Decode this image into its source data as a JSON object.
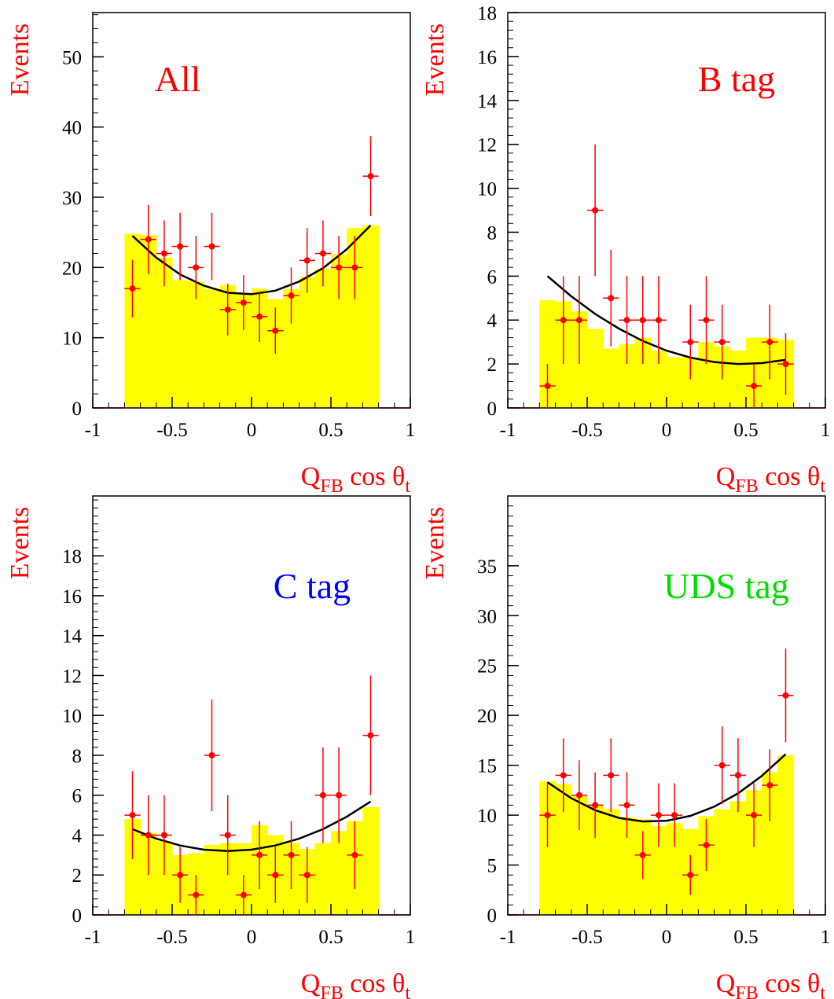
{
  "chart_data": [
    {
      "type": "histogram",
      "title": "All",
      "title_color": "#ff0000",
      "ylabel": "Events",
      "xlabel": [
        "Q",
        "FB",
        " cos θ",
        "t"
      ],
      "bins": [
        -0.8,
        -0.7,
        -0.6,
        -0.5,
        -0.4,
        -0.3,
        -0.2,
        -0.1,
        0,
        0.1,
        0.2,
        0.3,
        0.4,
        0.5,
        0.6,
        0.7,
        0.8
      ],
      "counts": [
        24.8,
        24.6,
        21.4,
        18.2,
        18,
        16.9,
        17.5,
        16.4,
        17,
        15.5,
        16.9,
        18.7,
        19.8,
        21.9,
        25.6,
        26
      ],
      "color": "#ffff00",
      "xlim": [
        -1,
        1
      ],
      "xticks": [
        -1,
        -0.5,
        0,
        0.5,
        1
      ],
      "ylim": [
        0,
        56.3
      ],
      "yticks": [
        0,
        10,
        20,
        30,
        40,
        50
      ],
      "xerr": 0.05,
      "points": {
        "color": "#ff0000",
        "x": [
          -0.75,
          -0.65,
          -0.55,
          -0.45,
          -0.35,
          -0.25,
          -0.15,
          -0.05,
          0.05,
          0.15,
          0.25,
          0.35,
          0.45,
          0.55,
          0.65,
          0.75
        ],
        "values": [
          17,
          24,
          22,
          23,
          20,
          23,
          14,
          15,
          13,
          11,
          16,
          21,
          22,
          20,
          20,
          33
        ],
        "errors": [
          4.1,
          4.9,
          4.7,
          4.8,
          4.5,
          4.8,
          3.7,
          3.9,
          3.6,
          3.3,
          4,
          4.6,
          4.7,
          4.5,
          4.5,
          5.7
        ]
      },
      "fit": {
        "color": "#000000",
        "x": [
          -0.75,
          -0.6,
          -0.45,
          -0.3,
          -0.15,
          0,
          0.15,
          0.3,
          0.45,
          0.6,
          0.75
        ],
        "values": [
          24.5,
          21.4,
          19,
          17.4,
          16.4,
          16.2,
          16.7,
          18,
          19.9,
          22.6,
          26
        ]
      }
    },
    {
      "type": "histogram",
      "title": "B tag",
      "title_color": "#ff0000",
      "ylabel": "Events",
      "xlabel": [
        "Q",
        "FB",
        " cos θ",
        "t"
      ],
      "bins": [
        -0.8,
        -0.7,
        -0.6,
        -0.5,
        -0.4,
        -0.3,
        -0.2,
        -0.1,
        0,
        0.1,
        0.2,
        0.3,
        0.4,
        0.5,
        0.6,
        0.7,
        0.8
      ],
      "counts": [
        4.9,
        4.85,
        4.4,
        3.6,
        2.7,
        2.9,
        3.2,
        2.6,
        2.3,
        2.3,
        3,
        2.8,
        2.6,
        3.2,
        3.2,
        3.1
      ],
      "color": "#ffff00",
      "xlim": [
        -1,
        1
      ],
      "xticks": [
        -1,
        -0.5,
        0,
        0.5,
        1
      ],
      "ylim": [
        0,
        18
      ],
      "yticks": [
        0,
        2,
        4,
        6,
        8,
        10,
        12,
        14,
        16,
        18
      ],
      "xerr": 0.05,
      "points": {
        "color": "#ff0000",
        "x": [
          -0.75,
          -0.65,
          -0.55,
          -0.45,
          -0.35,
          -0.25,
          -0.15,
          -0.05,
          0.15,
          0.25,
          0.35,
          0.55,
          0.65,
          0.75
        ],
        "values": [
          1,
          4,
          4,
          9,
          5,
          4,
          4,
          4,
          3,
          4,
          3,
          1,
          3,
          2
        ],
        "errors": [
          1,
          2,
          2,
          3,
          2.2,
          2,
          2,
          2,
          1.7,
          2,
          1.7,
          1,
          1.7,
          1.4
        ]
      },
      "fit": {
        "color": "#000000",
        "x": [
          -0.75,
          -0.6,
          -0.45,
          -0.3,
          -0.15,
          0,
          0.15,
          0.3,
          0.45,
          0.6,
          0.75
        ],
        "values": [
          6,
          5.08,
          4.28,
          3.61,
          3.05,
          2.61,
          2.29,
          2.09,
          2,
          2.04,
          2.19
        ]
      }
    },
    {
      "type": "histogram",
      "title": "C tag",
      "title_color": "#0000ff",
      "ylabel": "Events",
      "xlabel": [
        "Q",
        "FB",
        " cos θ",
        "t"
      ],
      "bins": [
        -0.8,
        -0.7,
        -0.6,
        -0.5,
        -0.4,
        -0.3,
        -0.2,
        -0.1,
        0,
        0.1,
        0.2,
        0.3,
        0.4,
        0.5,
        0.6,
        0.7,
        0.8
      ],
      "counts": [
        4.8,
        4.1,
        3.7,
        3,
        3.1,
        3.5,
        3.6,
        3.6,
        4.5,
        4,
        3.6,
        3.3,
        3.6,
        4.2,
        4.7,
        5.4
      ],
      "color": "#ffff00",
      "xlim": [
        -1,
        1
      ],
      "xticks": [
        -1,
        -0.5,
        0,
        0.5,
        1
      ],
      "ylim": [
        0,
        21
      ],
      "yticks": [
        0,
        2,
        4,
        6,
        8,
        10,
        12,
        14,
        16,
        18
      ],
      "xerr": 0.05,
      "points": {
        "color": "#ff0000",
        "x": [
          -0.75,
          -0.65,
          -0.55,
          -0.45,
          -0.35,
          -0.25,
          -0.15,
          -0.05,
          0.05,
          0.15,
          0.25,
          0.35,
          0.45,
          0.55,
          0.65,
          0.75
        ],
        "values": [
          5,
          4,
          4,
          2,
          1,
          8,
          4,
          1,
          3,
          2,
          3,
          2,
          6,
          6,
          3,
          9
        ],
        "errors": [
          2.2,
          2,
          2,
          1.4,
          1,
          2.8,
          2,
          1,
          1.7,
          1.4,
          1.7,
          1.4,
          2.4,
          2.4,
          1.7,
          3
        ]
      },
      "fit": {
        "color": "#000000",
        "x": [
          -0.75,
          -0.6,
          -0.45,
          -0.3,
          -0.15,
          0,
          0.15,
          0.3,
          0.45,
          0.6,
          0.75
        ],
        "values": [
          4.3,
          3.82,
          3.48,
          3.27,
          3.2,
          3.27,
          3.48,
          3.82,
          4.3,
          4.92,
          5.68
        ]
      }
    },
    {
      "type": "histogram",
      "title": "UDS tag",
      "title_color": "#00dd00",
      "ylabel": "Events",
      "xlabel": [
        "Q",
        "FB",
        " cos θ",
        "t"
      ],
      "bins": [
        -0.8,
        -0.7,
        -0.6,
        -0.5,
        -0.4,
        -0.3,
        -0.2,
        -0.1,
        0,
        0.1,
        0.2,
        0.3,
        0.4,
        0.5,
        0.6,
        0.7,
        0.8
      ],
      "counts": [
        13.4,
        13.1,
        11.9,
        11,
        10.6,
        9.8,
        9.6,
        8.9,
        9.2,
        8.6,
        9.9,
        10.6,
        11.4,
        12.5,
        14.3,
        16
      ],
      "color": "#ffff00",
      "xlim": [
        -1,
        1
      ],
      "xticks": [
        -1,
        -0.5,
        0,
        0.5,
        1
      ],
      "ylim": [
        0,
        42
      ],
      "yticks": [
        0,
        5,
        10,
        15,
        20,
        25,
        30,
        35
      ],
      "xerr": 0.05,
      "points": {
        "color": "#ff0000",
        "x": [
          -0.75,
          -0.65,
          -0.55,
          -0.45,
          -0.35,
          -0.25,
          -0.15,
          -0.05,
          0.05,
          0.15,
          0.25,
          0.35,
          0.45,
          0.55,
          0.65,
          0.75
        ],
        "values": [
          10,
          14,
          12,
          11,
          14,
          11,
          6,
          10,
          10,
          4,
          7,
          15,
          14,
          10,
          13,
          22
        ],
        "errors": [
          3.2,
          3.7,
          3.5,
          3.3,
          3.7,
          3.3,
          2.4,
          3.2,
          3.2,
          2,
          2.6,
          3.9,
          3.7,
          3.2,
          3.6,
          4.7
        ]
      },
      "fit": {
        "color": "#000000",
        "x": [
          -0.75,
          -0.6,
          -0.45,
          -0.3,
          -0.15,
          0,
          0.15,
          0.3,
          0.45,
          0.6,
          0.75
        ],
        "values": [
          13.3,
          11.69,
          10.5,
          9.72,
          9.37,
          9.44,
          9.93,
          10.85,
          12.18,
          13.94,
          16.11
        ]
      }
    }
  ]
}
